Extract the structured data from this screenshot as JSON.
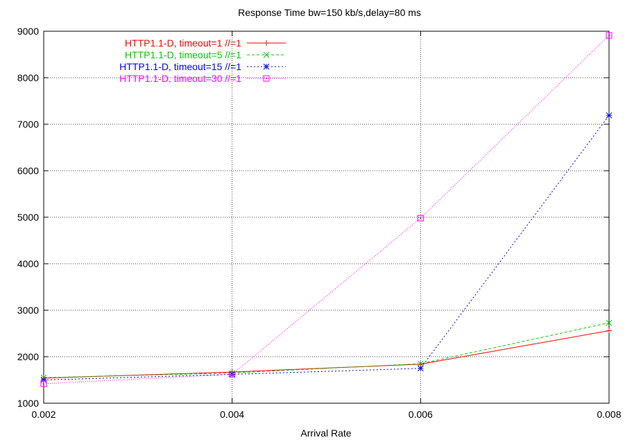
{
  "chart_data": {
    "type": "line",
    "title": "Response Time bw=150 kb/s,delay=80 ms",
    "xlabel": "Arrival Rate",
    "ylabel": "",
    "xlim": [
      0.002,
      0.008
    ],
    "ylim": [
      1000,
      9000
    ],
    "xticks": [
      "0.002",
      "0.004",
      "0.006",
      "0.008"
    ],
    "yticks": [
      "1000",
      "2000",
      "3000",
      "4000",
      "5000",
      "6000",
      "7000",
      "8000",
      "9000"
    ],
    "grid": true,
    "legend_position": "top-left",
    "x": [
      0.002,
      0.004,
      0.006,
      0.008
    ],
    "series": [
      {
        "name": "HTTP1.1-D, timeout=1  //=1",
        "color": "#ff0000",
        "dash": "solid",
        "marker": "plus",
        "values": [
          1540,
          1670,
          1840,
          2560
        ]
      },
      {
        "name": "HTTP1.1-D, timeout=5  //=1",
        "color": "#00cc00",
        "dash": "dashed",
        "marker": "cross",
        "values": [
          1550,
          1650,
          1850,
          2730
        ]
      },
      {
        "name": "HTTP1.1-D, timeout=15  //=1",
        "color": "#0000ff",
        "dash": "dotted",
        "marker": "star",
        "values": [
          1500,
          1620,
          1750,
          7190
        ]
      },
      {
        "name": "HTTP1.1-D, timeout=30  //=1",
        "color": "#ff00ff",
        "dash": "fine-dotted",
        "marker": "square",
        "values": [
          1420,
          1620,
          4980,
          8910
        ]
      }
    ]
  }
}
